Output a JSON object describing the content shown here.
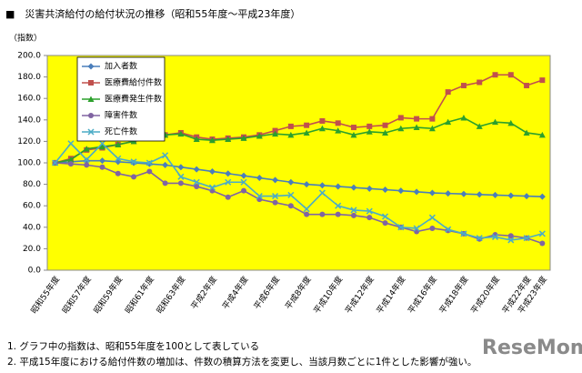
{
  "chart_data": {
    "type": "line",
    "title": "■　災害共済給付の給付状況の推移（昭和55年度～平成23年度）",
    "y_label": "（指数）",
    "categories": [
      "昭和55年度",
      null,
      "昭和57年度",
      null,
      "昭和59年度",
      null,
      "昭和61年度",
      null,
      "昭和63年度",
      null,
      "平成2年度",
      null,
      "平成4年度",
      null,
      "平成6年度",
      null,
      "平成8年度",
      null,
      "平成10年度",
      null,
      "平成12年度",
      null,
      "平成14年度",
      null,
      "平成16年度",
      null,
      "平成18年度",
      null,
      "平成20年度",
      null,
      "平成22年度",
      "平成23年度"
    ],
    "ylim": [
      0,
      200
    ],
    "yticks": [
      {
        "value": 0,
        "label": "0.0"
      },
      {
        "value": 20,
        "label": "20.0"
      },
      {
        "value": 40,
        "label": "40.0"
      },
      {
        "value": 60,
        "label": "60.0"
      },
      {
        "value": 80,
        "label": "80.0"
      },
      {
        "value": 100,
        "label": "100.0"
      },
      {
        "value": 120,
        "label": "120.0"
      },
      {
        "value": 140,
        "label": "140.0"
      },
      {
        "value": 160,
        "label": "160.0"
      },
      {
        "value": 180,
        "label": "180.0"
      },
      {
        "value": 200,
        "label": "200.0"
      }
    ],
    "plot_background": "#ffff00",
    "series": [
      {
        "name": "加入者数",
        "color": "#4a7ebb",
        "marker": "diamond",
        "values": [
          100,
          101,
          102,
          102,
          101,
          100,
          99,
          98,
          96,
          94,
          92,
          90,
          88,
          86,
          84,
          82,
          80,
          79,
          78,
          77,
          76,
          75,
          74,
          73,
          72,
          71.5,
          71,
          70.5,
          70,
          69.5,
          69,
          68.5
        ]
      },
      {
        "name": "医療費給付件数",
        "color": "#c0504d",
        "marker": "square",
        "values": [
          100,
          104,
          112,
          114,
          117,
          120,
          123,
          126,
          128,
          124,
          122,
          123,
          124,
          126,
          130,
          134,
          135,
          139,
          137,
          133,
          134,
          135,
          142,
          141,
          141,
          166,
          172,
          175,
          182,
          182,
          172,
          177
        ]
      },
      {
        "name": "医療費発生件数",
        "color": "#2ca02c",
        "marker": "triangle",
        "values": [
          100,
          103,
          113,
          115,
          117,
          120,
          123,
          126,
          127,
          122,
          121,
          122,
          123,
          125,
          127,
          126,
          128,
          132,
          130,
          126,
          129,
          128,
          132,
          133,
          132,
          138,
          142,
          134,
          138,
          137,
          128,
          126
        ]
      },
      {
        "name": "障害件数",
        "color": "#8064a2",
        "marker": "circle",
        "values": [
          100,
          99,
          98,
          96,
          90,
          87,
          92,
          81,
          81,
          78,
          74,
          68,
          74,
          66,
          63,
          60,
          52,
          52,
          52,
          51,
          49,
          44,
          40,
          36,
          39,
          37,
          34,
          29,
          33,
          32,
          30,
          25
        ]
      },
      {
        "name": "死亡件数",
        "color": "#4bacc6",
        "marker": "x",
        "values": [
          100,
          118,
          103,
          118,
          104,
          101,
          100,
          107,
          87,
          82,
          77,
          82,
          82,
          69,
          69,
          70,
          57,
          72,
          60,
          56,
          55,
          50,
          40,
          39,
          49,
          38,
          34,
          30,
          31,
          28,
          30,
          34
        ]
      }
    ]
  },
  "notes": [
    "1. グラフ中の指数は、昭和55年度を100として表している",
    "2. 平成15年度における給付件数の増加は、件数の積算方法を変更し、当該月数ごとに1件とした影響が強い。"
  ],
  "logo": "ReseMom"
}
